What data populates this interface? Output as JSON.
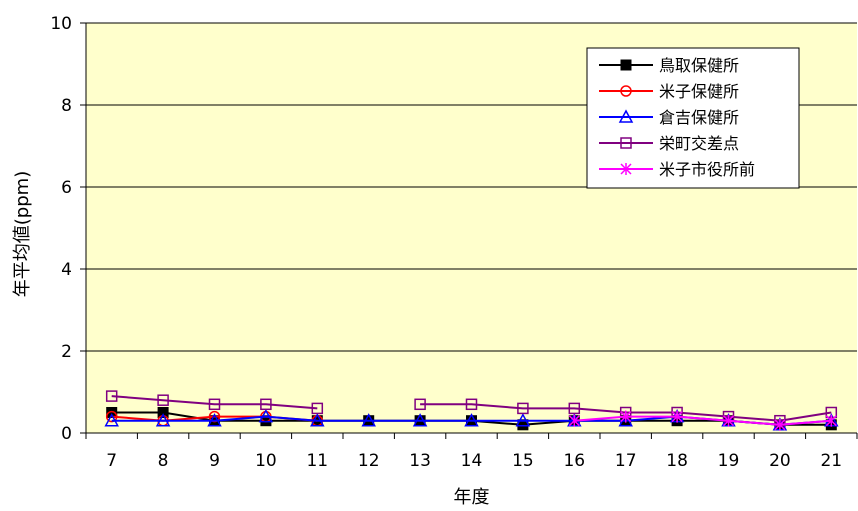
{
  "chart_data": {
    "type": "line",
    "title": "",
    "xlabel": "年度",
    "ylabel": "年平均値(ppm)",
    "x": [
      7,
      8,
      9,
      10,
      11,
      12,
      13,
      14,
      15,
      16,
      17,
      18,
      19,
      20,
      21
    ],
    "ylim": [
      0,
      10
    ],
    "yticks": [
      0,
      2,
      4,
      6,
      8,
      10
    ],
    "grid": true,
    "legend_position": "top-right",
    "plot_background": "#ffffcc",
    "series": [
      {
        "name": "鳥取保健所",
        "color": "#000000",
        "marker": "filled-square",
        "values": [
          0.5,
          0.5,
          0.3,
          0.3,
          0.3,
          0.3,
          0.3,
          0.3,
          0.2,
          0.3,
          0.3,
          0.3,
          0.3,
          0.2,
          0.2
        ]
      },
      {
        "name": "米子保健所",
        "color": "#ff0000",
        "marker": "circle",
        "values": [
          0.4,
          0.3,
          0.4,
          0.4,
          0.3,
          null,
          null,
          null,
          null,
          null,
          null,
          null,
          null,
          null,
          null
        ]
      },
      {
        "name": "倉吉保健所",
        "color": "#0000ff",
        "marker": "triangle",
        "values": [
          0.3,
          0.3,
          0.3,
          0.4,
          0.3,
          0.3,
          0.3,
          0.3,
          0.3,
          0.3,
          0.3,
          0.4,
          0.3,
          0.2,
          0.3
        ]
      },
      {
        "name": "栄町交差点",
        "color": "#800080",
        "marker": "open-square",
        "values": [
          0.9,
          0.8,
          0.7,
          0.7,
          0.6,
          null,
          0.7,
          0.7,
          0.6,
          0.6,
          0.5,
          0.5,
          0.4,
          0.3,
          0.5
        ]
      },
      {
        "name": "米子市役所前",
        "color": "#ff00ff",
        "marker": "asterisk",
        "values": [
          null,
          null,
          null,
          null,
          null,
          null,
          null,
          null,
          null,
          0.3,
          0.4,
          0.4,
          0.3,
          0.2,
          0.3
        ]
      }
    ]
  }
}
